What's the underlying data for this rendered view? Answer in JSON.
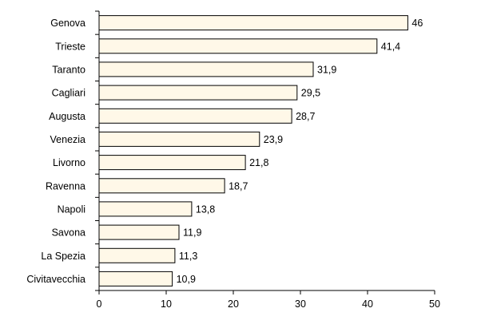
{
  "chart_data": {
    "type": "bar",
    "orientation": "horizontal",
    "categories": [
      "Genova",
      "Trieste",
      "Taranto",
      "Cagliari",
      "Augusta",
      "Venezia",
      "Livorno",
      "Ravenna",
      "Napoli",
      "Savona",
      "La Spezia",
      "Civitavecchia"
    ],
    "values": [
      46,
      41.4,
      31.9,
      29.5,
      28.7,
      23.9,
      21.8,
      18.7,
      13.8,
      11.9,
      11.3,
      10.9
    ],
    "value_labels": [
      "46",
      "41,4",
      "31,9",
      "29,5",
      "28,7",
      "23,9",
      "21,8",
      "18,7",
      "13,8",
      "11,9",
      "11,3",
      "10,9"
    ],
    "xlim": [
      0,
      50
    ],
    "xticks": [
      "0",
      "10",
      "20",
      "30",
      "40",
      "50"
    ],
    "grid": false,
    "legend": "none",
    "colors": {
      "bar_fill": "#FFF8E8",
      "bar_stroke": "#000000"
    }
  }
}
